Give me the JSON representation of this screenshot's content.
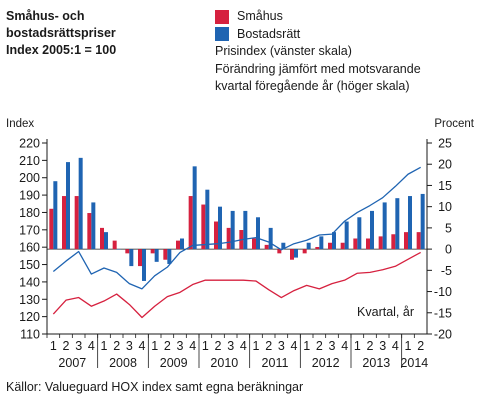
{
  "title": [
    "Småhus- och",
    "bostadsrättspriser",
    "Index 2005:1 = 100"
  ],
  "legend": {
    "smahus": "Småhus",
    "bostadsratt": "Bostadsrätt",
    "note1": "Prisindex (vänster skala)",
    "note2": "Förändring jämfört med motsvarande",
    "note3": "kvartal föregående år (höger skala)"
  },
  "source": "Källor: Valueguard HOX index samt egna beräkningar",
  "colors": {
    "smahus": "#d6213f",
    "bostadsratt": "#1f64b2",
    "axis": "#1a1a1a"
  },
  "chart_data": {
    "type": "bar",
    "left_axis": {
      "label": "Index",
      "range": [
        110,
        220
      ],
      "ticks": [
        110,
        120,
        130,
        140,
        150,
        160,
        170,
        180,
        190,
        200,
        210,
        220
      ]
    },
    "right_axis": {
      "label": "Procent",
      "range": [
        -20,
        25
      ],
      "ticks": [
        -20,
        -15,
        -10,
        -5,
        0,
        5,
        10,
        15,
        20,
        25
      ]
    },
    "x_axis_label": "Kvartal, år",
    "quarters": [
      "1",
      "2",
      "3",
      "4",
      "1",
      "2",
      "3",
      "4",
      "1",
      "2",
      "3",
      "4",
      "1",
      "2",
      "3",
      "4",
      "1",
      "2",
      "3",
      "4",
      "1",
      "2",
      "3",
      "4",
      "1",
      "2",
      "3",
      "4",
      "1",
      "2"
    ],
    "years": [
      "2007",
      "2008",
      "2009",
      "2010",
      "2011",
      "2012",
      "2013",
      "2014"
    ],
    "series": [
      {
        "name": "Småhus",
        "kind": "bars",
        "axis": "right",
        "values": [
          9.5,
          12.5,
          12.5,
          8.5,
          5,
          2,
          -1,
          -4,
          -1,
          -2.5,
          2,
          12.5,
          10.5,
          6.5,
          5,
          4.5,
          2.5,
          1,
          -1,
          -2.5,
          -1,
          0.5,
          1.5,
          1.5,
          2.5,
          2.5,
          3,
          3.5,
          4,
          4
        ]
      },
      {
        "name": "Bostadsrätt",
        "kind": "bars",
        "axis": "right",
        "values": [
          16,
          20.5,
          21.5,
          11,
          4,
          0,
          -4,
          -7.5,
          -3,
          -3.5,
          2.5,
          19.5,
          14,
          10,
          9,
          9,
          7.5,
          5,
          1.5,
          -2,
          1.5,
          3,
          4,
          6.5,
          7.5,
          9,
          11,
          12,
          12.5,
          13
        ]
      },
      {
        "name": "Småhus",
        "kind": "line",
        "axis": "left",
        "values": [
          121.5,
          129.5,
          131,
          126,
          129,
          133,
          127,
          119.5,
          126,
          131.5,
          134,
          138.5,
          141,
          141,
          141,
          141,
          140.5,
          135.5,
          131,
          135,
          138,
          136,
          139,
          141,
          145,
          145.5,
          147,
          149,
          153,
          157
        ]
      },
      {
        "name": "Bostadsrätt",
        "kind": "line",
        "axis": "left",
        "values": [
          146,
          152,
          157.5,
          144.5,
          148,
          145.5,
          139,
          136,
          143.5,
          148.5,
          157,
          161,
          161.5,
          162,
          163,
          164.5,
          165.5,
          163,
          158.5,
          162,
          164,
          167,
          167.5,
          175,
          180,
          184,
          188.5,
          195,
          202,
          206
        ]
      }
    ]
  }
}
